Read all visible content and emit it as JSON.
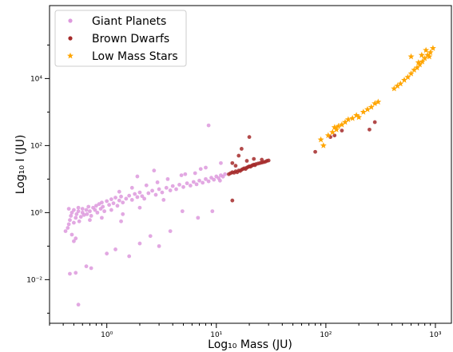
{
  "chart_data": {
    "type": "scatter",
    "xlabel": "Log₁₀ Mass (JU)",
    "ylabel": "Log₁₀ I (JU)",
    "x_scale": "log",
    "y_scale": "log",
    "xlim": [
      0.3,
      1400
    ],
    "ylim": [
      0.0005,
      1500000
    ],
    "x_ticks": [
      {
        "value": 1,
        "label": "10⁰"
      },
      {
        "value": 10,
        "label": "10¹"
      },
      {
        "value": 100,
        "label": "10²"
      },
      {
        "value": 1000,
        "label": "10³"
      }
    ],
    "y_ticks": [
      {
        "value": 0.01,
        "label": "10⁻²"
      },
      {
        "value": 1,
        "label": "10⁰"
      },
      {
        "value": 100,
        "label": "10²"
      },
      {
        "value": 10000,
        "label": "10⁴"
      }
    ],
    "grid": false,
    "legend_position": "top-left",
    "series": [
      {
        "name": "Giant Planets",
        "color": "#dd99dd",
        "marker": "circle",
        "points": [
          [
            0.42,
            0.28
          ],
          [
            0.44,
            0.35
          ],
          [
            0.45,
            0.45
          ],
          [
            0.46,
            0.6
          ],
          [
            0.47,
            0.8
          ],
          [
            0.48,
            1.0
          ],
          [
            0.5,
            0.5
          ],
          [
            0.5,
            1.2
          ],
          [
            0.52,
            0.7
          ],
          [
            0.53,
            0.9
          ],
          [
            0.55,
            1.1
          ],
          [
            0.56,
            0.55
          ],
          [
            0.58,
            0.75
          ],
          [
            0.6,
            1.0
          ],
          [
            0.6,
            1.3
          ],
          [
            0.62,
            0.85
          ],
          [
            0.65,
            1.2
          ],
          [
            0.66,
            0.9
          ],
          [
            0.68,
            1.5
          ],
          [
            0.7,
            1.1
          ],
          [
            0.72,
            0.8
          ],
          [
            0.75,
            1.4
          ],
          [
            0.78,
            1.2
          ],
          [
            0.8,
            1.6
          ],
          [
            0.82,
            1.0
          ],
          [
            0.85,
            1.8
          ],
          [
            0.88,
            1.3
          ],
          [
            0.9,
            2.0
          ],
          [
            0.92,
            1.5
          ],
          [
            0.95,
            1.1
          ],
          [
            1.0,
            2.2
          ],
          [
            1.05,
            1.7
          ],
          [
            1.1,
            2.5
          ],
          [
            1.15,
            1.9
          ],
          [
            1.2,
            2.8
          ],
          [
            1.25,
            1.6
          ],
          [
            1.3,
            2.3
          ],
          [
            1.35,
            3.0
          ],
          [
            1.4,
            2.0
          ],
          [
            1.5,
            2.6
          ],
          [
            1.6,
            3.2
          ],
          [
            1.7,
            2.4
          ],
          [
            1.8,
            3.6
          ],
          [
            1.9,
            2.9
          ],
          [
            2.0,
            4.0
          ],
          [
            2.1,
            3.1
          ],
          [
            2.2,
            2.6
          ],
          [
            2.4,
            3.8
          ],
          [
            2.6,
            4.5
          ],
          [
            2.8,
            3.4
          ],
          [
            3.0,
            5.0
          ],
          [
            3.2,
            4.0
          ],
          [
            3.5,
            5.5
          ],
          [
            3.8,
            4.6
          ],
          [
            4.0,
            6.2
          ],
          [
            4.3,
            5.0
          ],
          [
            4.6,
            6.8
          ],
          [
            5.0,
            5.8
          ],
          [
            5.4,
            7.5
          ],
          [
            5.8,
            6.4
          ],
          [
            6.2,
            8.2
          ],
          [
            6.6,
            7.0
          ],
          [
            7.0,
            9.0
          ],
          [
            7.5,
            7.8
          ],
          [
            8.0,
            10.0
          ],
          [
            8.5,
            8.6
          ],
          [
            9.0,
            11.0
          ],
          [
            9.5,
            9.6
          ],
          [
            10.0,
            12.0
          ],
          [
            10.5,
            10.6
          ],
          [
            11.0,
            13.0
          ],
          [
            11.5,
            11.8
          ],
          [
            12.0,
            14.0
          ],
          [
            0.45,
            1.3
          ],
          [
            0.55,
            1.4
          ],
          [
            0.7,
            0.6
          ],
          [
            0.9,
            0.7
          ],
          [
            1.1,
            1.2
          ],
          [
            1.3,
            4.2
          ],
          [
            1.7,
            5.5
          ],
          [
            2.3,
            6.5
          ],
          [
            2.9,
            8.0
          ],
          [
            3.6,
            10.0
          ],
          [
            4.8,
            13.0
          ],
          [
            6.4,
            15.0
          ],
          [
            8.0,
            22.0
          ],
          [
            11.0,
            30.0
          ],
          [
            1.4,
            0.9
          ],
          [
            2.0,
            1.4
          ],
          [
            3.3,
            2.4
          ],
          [
            0.48,
            0.22
          ],
          [
            0.5,
            0.14
          ],
          [
            0.52,
            0.17
          ],
          [
            1.0,
            0.06
          ],
          [
            1.2,
            0.08
          ],
          [
            1.6,
            0.05
          ],
          [
            2.0,
            0.12
          ],
          [
            2.5,
            0.2
          ],
          [
            3.0,
            0.1
          ],
          [
            3.8,
            0.28
          ],
          [
            0.65,
            0.025
          ],
          [
            0.72,
            0.022
          ],
          [
            0.46,
            0.015
          ],
          [
            0.52,
            0.016
          ],
          [
            0.55,
            0.0018
          ],
          [
            8.5,
            400
          ],
          [
            1.35,
            0.55
          ],
          [
            6.8,
            0.7
          ],
          [
            9.2,
            1.1
          ],
          [
            4.9,
            1.1
          ],
          [
            7.2,
            20
          ],
          [
            2.7,
            18
          ],
          [
            1.9,
            12
          ],
          [
            5.2,
            14
          ],
          [
            10.8,
            9
          ]
        ]
      },
      {
        "name": "Brown Dwarfs",
        "color": "#a52a2a",
        "marker": "circle",
        "points": [
          [
            13,
            14
          ],
          [
            13.5,
            15
          ],
          [
            14,
            16
          ],
          [
            14.5,
            15.5
          ],
          [
            15,
            17
          ],
          [
            15.5,
            16
          ],
          [
            16,
            18
          ],
          [
            16.5,
            17.5
          ],
          [
            17,
            19
          ],
          [
            17.5,
            20
          ],
          [
            18,
            21
          ],
          [
            18.5,
            20
          ],
          [
            19,
            22
          ],
          [
            19.5,
            23
          ],
          [
            20,
            24
          ],
          [
            20.5,
            23.5
          ],
          [
            21,
            25
          ],
          [
            21.5,
            26
          ],
          [
            22,
            27
          ],
          [
            22.5,
            26
          ],
          [
            23,
            28
          ],
          [
            24,
            29
          ],
          [
            25,
            30
          ],
          [
            26,
            31
          ],
          [
            27,
            32
          ],
          [
            28,
            33
          ],
          [
            29,
            35
          ],
          [
            30,
            36
          ],
          [
            14,
            30
          ],
          [
            16,
            50
          ],
          [
            17,
            80
          ],
          [
            20,
            180
          ],
          [
            14,
            2.3
          ],
          [
            22,
            40
          ],
          [
            26,
            38
          ],
          [
            15,
            25
          ],
          [
            19,
            35
          ],
          [
            80,
            65
          ],
          [
            110,
            180
          ],
          [
            250,
            300
          ],
          [
            280,
            500
          ],
          [
            120,
            200
          ],
          [
            140,
            280
          ]
        ]
      },
      {
        "name": "Low Mass Stars",
        "color": "#ffa500",
        "marker": "star",
        "points": [
          [
            90,
            150
          ],
          [
            95,
            100
          ],
          [
            105,
            200
          ],
          [
            115,
            250
          ],
          [
            120,
            350
          ],
          [
            125,
            300
          ],
          [
            130,
            380
          ],
          [
            140,
            420
          ],
          [
            150,
            500
          ],
          [
            160,
            600
          ],
          [
            175,
            650
          ],
          [
            190,
            800
          ],
          [
            200,
            700
          ],
          [
            220,
            1000
          ],
          [
            240,
            1200
          ],
          [
            260,
            1400
          ],
          [
            280,
            1800
          ],
          [
            300,
            2000
          ],
          [
            420,
            5000
          ],
          [
            450,
            6000
          ],
          [
            480,
            7000
          ],
          [
            520,
            9000
          ],
          [
            560,
            11000
          ],
          [
            600,
            14000
          ],
          [
            640,
            18000
          ],
          [
            680,
            21000
          ],
          [
            720,
            26000
          ],
          [
            760,
            32000
          ],
          [
            800,
            40000
          ],
          [
            850,
            50000
          ],
          [
            900,
            60000
          ],
          [
            950,
            80000
          ],
          [
            750,
            50000
          ],
          [
            820,
            70000
          ],
          [
            600,
            45000
          ],
          [
            880,
            45000
          ],
          [
            700,
            30000
          ]
        ]
      }
    ]
  }
}
